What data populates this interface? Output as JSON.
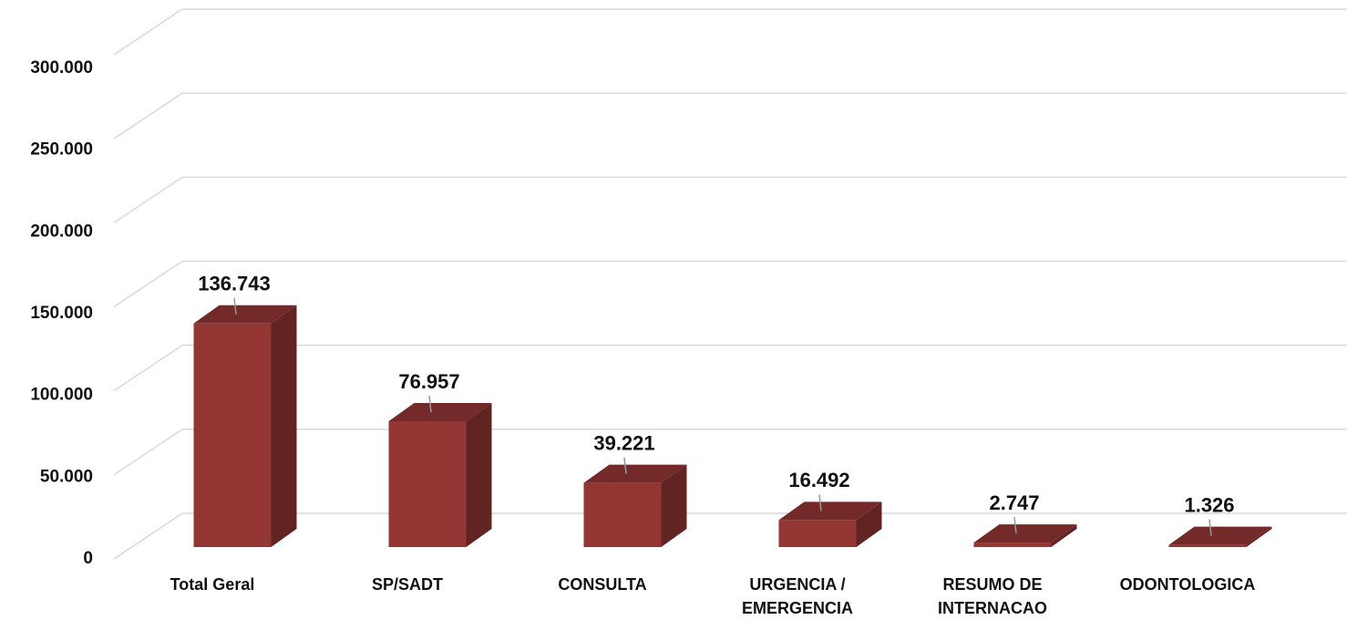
{
  "chart_data": {
    "type": "bar3d",
    "categories": [
      "Total Geral",
      "SP/SADT",
      "CONSULTA",
      "URGENCIA / EMERGENCIA",
      "RESUMO DE INTERNACAO",
      "ODONTOLOGICA"
    ],
    "values": [
      136743,
      76957,
      39221,
      16492,
      2747,
      1326
    ],
    "value_labels": [
      "136.743",
      "76.957",
      "39.221",
      "16.492",
      "2.747",
      "1.326"
    ],
    "color": "#943634",
    "ylim": [
      0,
      300000
    ],
    "yticks": [
      {
        "value": 0,
        "label": "0"
      },
      {
        "value": 50000,
        "label": "50.000"
      },
      {
        "value": 100000,
        "label": "100.000"
      },
      {
        "value": 150000,
        "label": "150.000"
      },
      {
        "value": 200000,
        "label": "200.000"
      },
      {
        "value": 250000,
        "label": "250.000"
      },
      {
        "value": 300000,
        "label": "300.000"
      }
    ],
    "grid": true
  }
}
